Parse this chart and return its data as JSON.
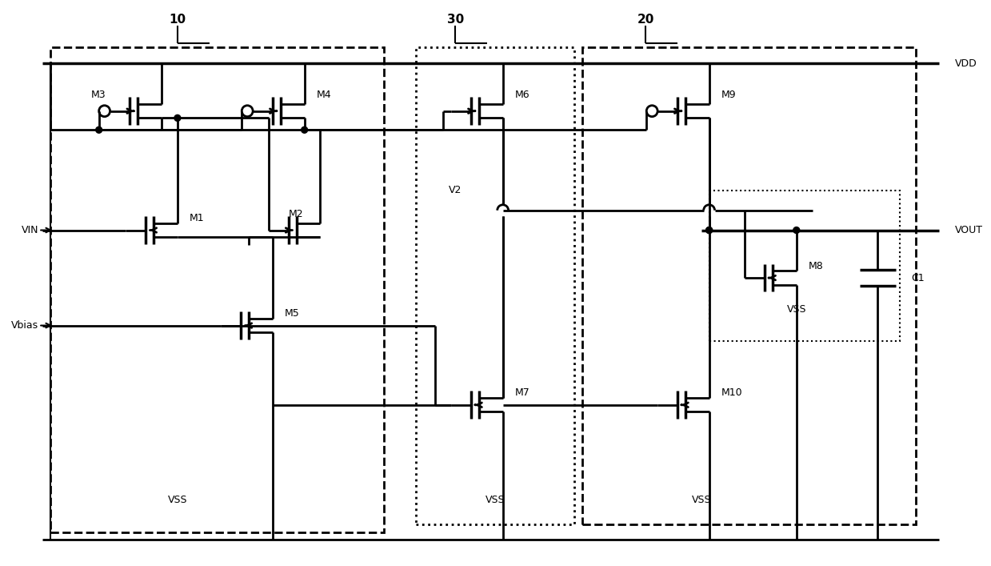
{
  "bg_color": "#ffffff",
  "line_color": "#000000",
  "figsize": [
    12.39,
    7.07
  ],
  "dpi": 100,
  "xlim": [
    0,
    124
  ],
  "ylim": [
    0,
    70.7
  ]
}
